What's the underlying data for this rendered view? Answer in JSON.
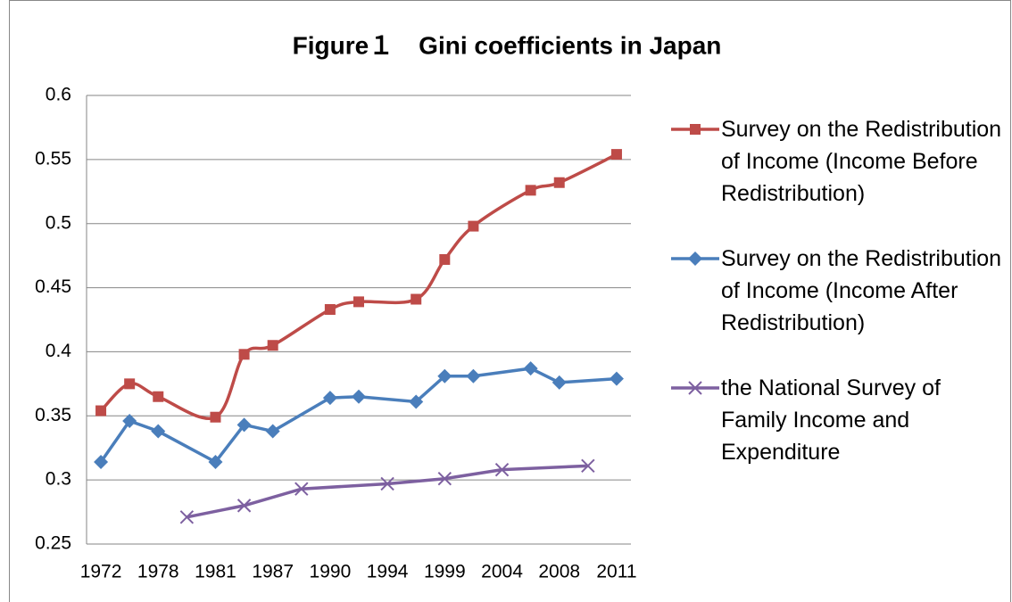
{
  "chart_data": {
    "type": "line",
    "title": "Figure１　Gini coefficients in Japan",
    "categories": [
      "1972",
      null,
      "1978",
      null,
      "1981",
      null,
      "1987",
      null,
      "1990",
      null,
      "1994",
      null,
      "1999",
      null,
      "2004",
      null,
      "2008",
      null,
      "2011"
    ],
    "series": [
      {
        "name": "Survey on the Redistribution of Income (Income Before Redistribution)",
        "color": "#be4b48",
        "marker": "square",
        "smooth": true,
        "values": [
          0.354,
          0.375,
          0.365,
          null,
          0.349,
          0.398,
          0.405,
          null,
          0.433,
          0.439,
          null,
          0.441,
          0.472,
          0.498,
          null,
          0.526,
          0.532,
          null,
          0.554
        ]
      },
      {
        "name": "Survey on the Redistribution of Income (Income After Redistribution)",
        "color": "#4a7ebb",
        "marker": "diamond",
        "smooth": false,
        "values": [
          0.314,
          0.346,
          0.338,
          null,
          0.314,
          0.343,
          0.338,
          null,
          0.364,
          0.365,
          null,
          0.361,
          0.381,
          0.381,
          null,
          0.387,
          0.376,
          null,
          0.379
        ]
      },
      {
        "name": "the National Survey of Family Income and Expenditure",
        "color": "#7d60a0",
        "marker": "x",
        "smooth": false,
        "values": [
          null,
          null,
          null,
          0.271,
          null,
          0.28,
          null,
          0.293,
          null,
          null,
          0.297,
          null,
          0.301,
          null,
          0.308,
          null,
          null,
          0.311,
          null
        ]
      }
    ],
    "ylim": [
      0.25,
      0.6
    ],
    "yticks": [
      0.25,
      0.3,
      0.35,
      0.4,
      0.45,
      0.5,
      0.55,
      0.6
    ],
    "grid": true,
    "span_gaps": true,
    "legend": "right"
  }
}
